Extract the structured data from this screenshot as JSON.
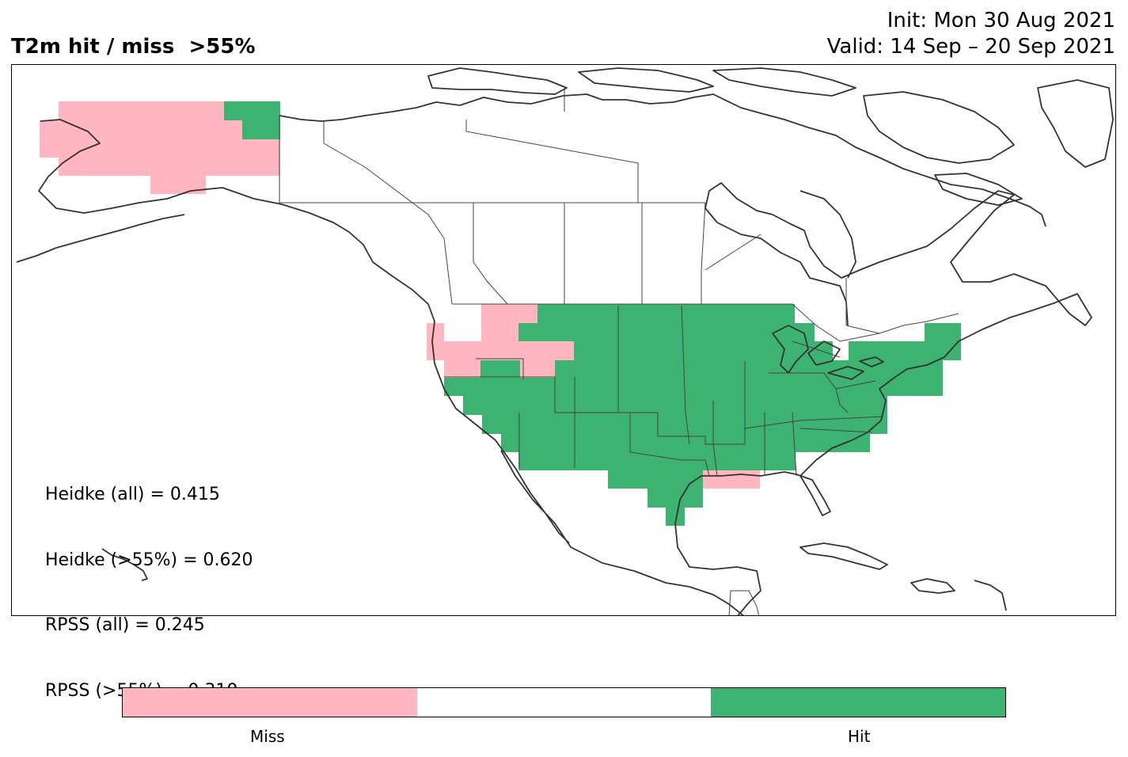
{
  "title": "T2m hit / miss  >55%",
  "init_line": "Init: Mon 30 Aug 2021",
  "valid_line": "Valid: 14 Sep – 20 Sep 2021",
  "scores": [
    "Heidke (all) = 0.415",
    "Heidke (>55%) = 0.620",
    "RPSS (all) = 0.245",
    "RPSS (>55%) = 0.310"
  ],
  "colorbar": {
    "colors": [
      "#ffb6c1",
      "#ffffff",
      "#3cb371"
    ],
    "labels": [
      "Miss",
      "Hit"
    ]
  },
  "colors": {
    "miss": "#ffb6c1",
    "hit": "#3cb371",
    "coastline": "#333333"
  },
  "grid_categories": "M = miss, H = hit"
}
